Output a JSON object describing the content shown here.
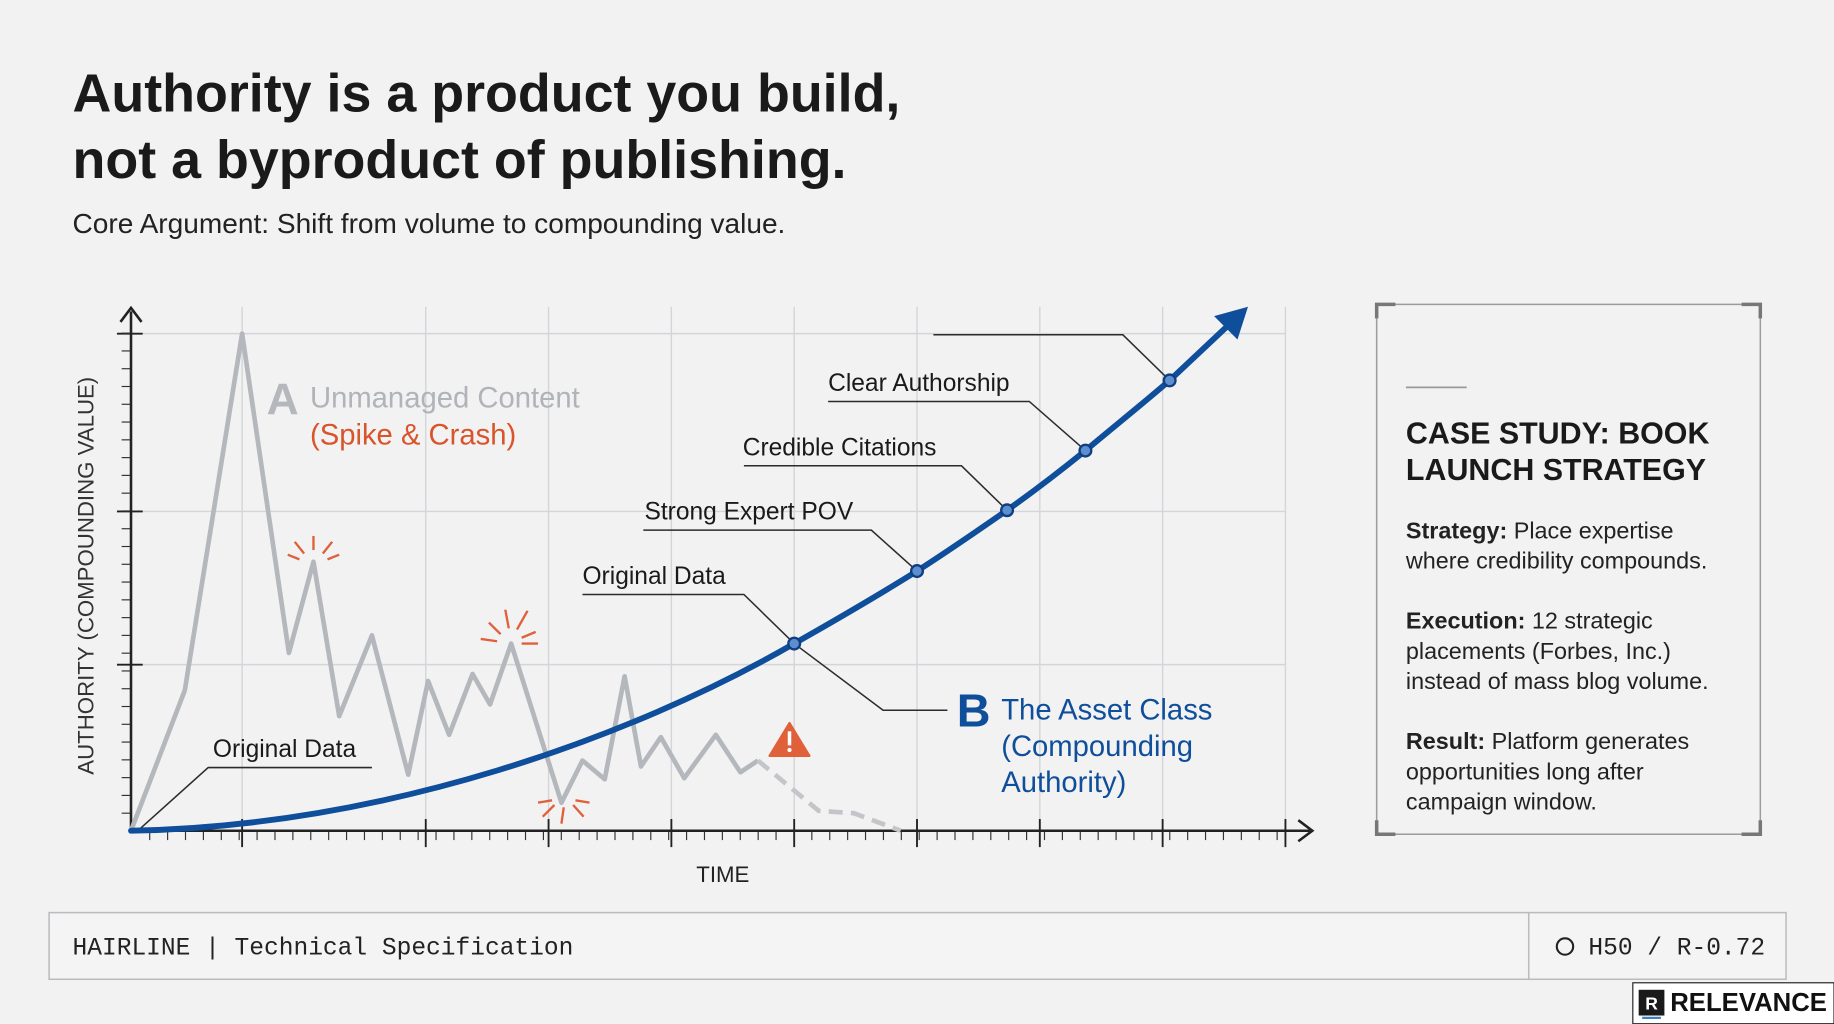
{
  "header": {
    "title_lines": [
      "Authority is a product you build,",
      "not a byproduct of publishing."
    ],
    "subtitle": "Core Argument: Shift from volume to compounding value."
  },
  "diagram": {
    "y_axis_label": "AUTHORITY (COMPOUNDING VALUE)",
    "x_axis_label": "TIME",
    "series_a": {
      "letter": "A",
      "name": "Unmanaged Content",
      "note": "(Spike & Crash)",
      "callout": "Original Data"
    },
    "series_b": {
      "letter": "B",
      "name_lines": [
        "The Asset Class",
        "(Compounding",
        "Authority)"
      ]
    },
    "milestones": [
      "Original Data",
      "Strong Expert POV",
      "Credible Citations",
      "Clear Authorship"
    ]
  },
  "case_study": {
    "title_lines": [
      "CASE STUDY: BOOK",
      "LAUNCH STRATEGY"
    ],
    "items": [
      {
        "label": "Strategy:",
        "lines": [
          "Place expertise",
          "where credibility compounds."
        ]
      },
      {
        "label": "Execution:",
        "lines": [
          "12 strategic",
          "placements (Forbes, Inc.)",
          "instead of mass blog volume."
        ]
      },
      {
        "label": "Result:",
        "lines": [
          "Platform generates",
          "opportunities long after",
          "campaign window."
        ]
      }
    ]
  },
  "footer": {
    "left": "HAIRLINE | Technical Specification",
    "right": "H50 / R-0.72"
  },
  "brand": {
    "icon": "R",
    "name": "RELEVANCE"
  }
}
